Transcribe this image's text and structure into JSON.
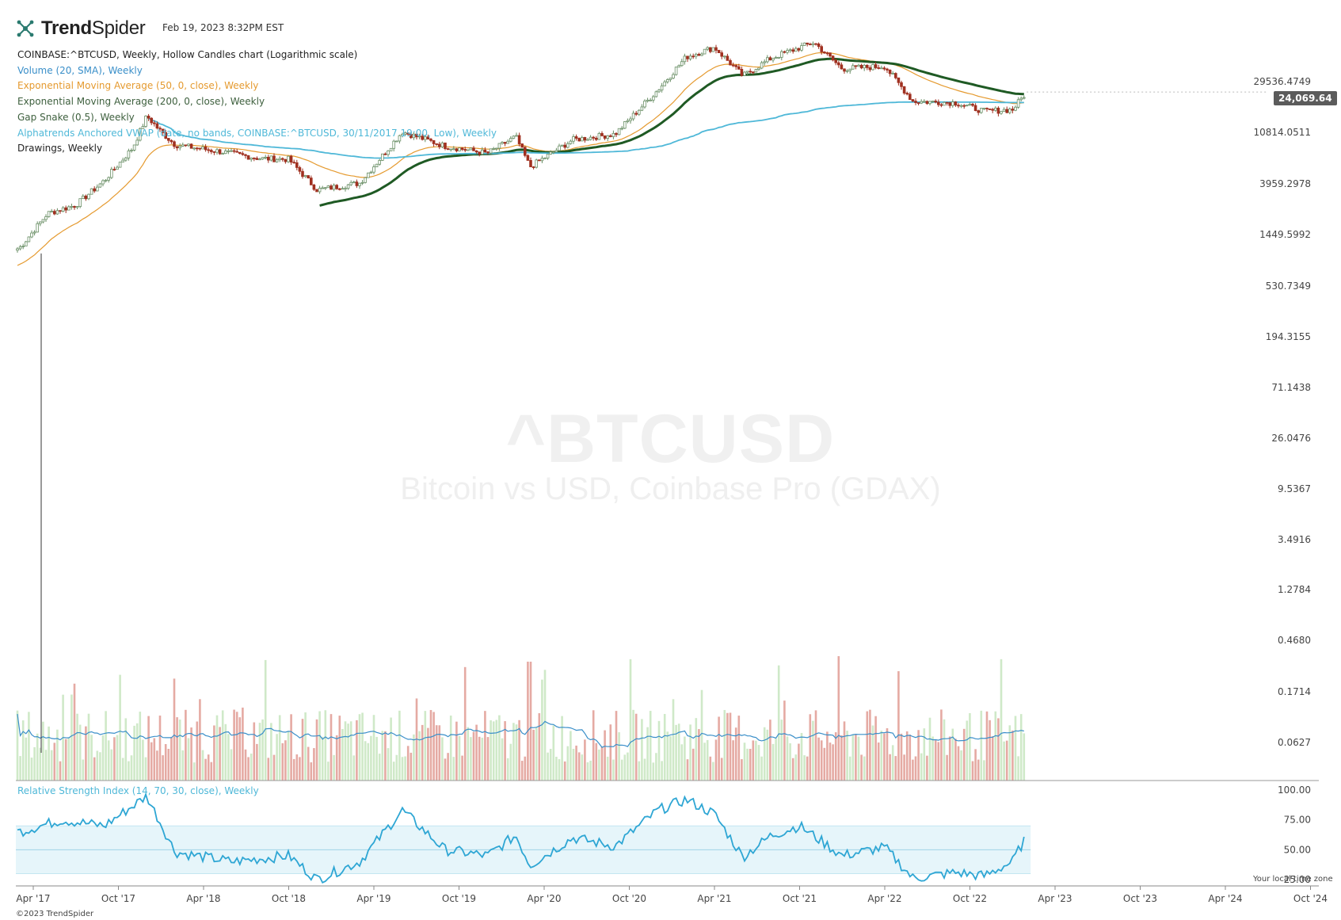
{
  "header": {
    "brand_bold": "Trend",
    "brand_thin": "Spider",
    "timestamp": "Feb 19, 2023 8:32PM EST"
  },
  "legend": [
    {
      "text": "COINBASE:^BTCUSD, Weekly, Hollow Candles chart (Logarithmic scale)",
      "color": "#222222"
    },
    {
      "text": "Volume (20, SMA), Weekly",
      "color": "#3a8fc9"
    },
    {
      "text": "Exponential Moving Average (50, 0, close), Weekly",
      "color": "#e59a2f"
    },
    {
      "text": "Exponential Moving Average (200, 0, close), Weekly",
      "color": "#3d5f3d"
    },
    {
      "text": "Gap Snake (0.5), Weekly",
      "color": "#3d5f3d"
    },
    {
      "text": "Alphatrends Anchored VWAP (date, no bands, COINBASE:^BTCUSD, 30/11/2017 19:00, Low), Weekly",
      "color": "#4fb8d8"
    },
    {
      "text": "Drawings, Weekly",
      "color": "#222222"
    }
  ],
  "watermark": {
    "symbol": "^BTCUSD",
    "description": "Bitcoin vs USD, Coinbase Pro (GDAX)"
  },
  "rsi_label": "Relative Strength Index (14, 70, 30, close), Weekly",
  "footer": {
    "copyright": "©2023 TrendSpider",
    "timezone_note": "Your local time zone"
  },
  "last_price": "24,069.64",
  "colors": {
    "up_candle": "#c9e8c3",
    "down_candle": "#a03020",
    "ema50": "#e59a2f",
    "ema200": "#1f5a24",
    "vwap": "#4fb8d8",
    "volume_up": "#cfe9c8",
    "volume_down": "#e5aaa3",
    "volume_sma": "#3a8fc9",
    "rsi_line": "#2ea6d4",
    "rsi_band": "#e6f5fa"
  },
  "chart_data": {
    "type": "candlestick",
    "scale": "logarithmic",
    "y_ticks": [
      "29536.4749",
      "10814.0511",
      "3959.2978",
      "1449.5992",
      "530.7349",
      "194.3155",
      "71.1438",
      "26.0476",
      "9.5367",
      "3.4916",
      "1.2784",
      "0.4680",
      "0.1714",
      "0.0627"
    ],
    "x_ticks": [
      "Apr '17",
      "Oct '17",
      "Apr '18",
      "Oct '18",
      "Apr '19",
      "Oct '19",
      "Apr '20",
      "Oct '20",
      "Apr '21",
      "Oct '21",
      "Apr '22",
      "Oct '22",
      "Apr '23",
      "Oct '23",
      "Apr '24",
      "Oct '24"
    ],
    "price_path": [
      [
        "2017-03",
        1100
      ],
      [
        "2017-05",
        2200
      ],
      [
        "2017-07",
        2600
      ],
      [
        "2017-09",
        4200
      ],
      [
        "2017-11",
        8000
      ],
      [
        "2017-12",
        15000
      ],
      [
        "2018-01",
        11000
      ],
      [
        "2018-02",
        8500
      ],
      [
        "2018-05",
        7500
      ],
      [
        "2018-08",
        6500
      ],
      [
        "2018-10",
        6400
      ],
      [
        "2018-12",
        3500
      ],
      [
        "2019-03",
        4000
      ],
      [
        "2019-06",
        11000
      ],
      [
        "2019-09",
        8300
      ],
      [
        "2019-12",
        7200
      ],
      [
        "2020-02",
        10000
      ],
      [
        "2020-03",
        5500
      ],
      [
        "2020-06",
        9400
      ],
      [
        "2020-09",
        10500
      ],
      [
        "2020-12",
        25000
      ],
      [
        "2021-02",
        48000
      ],
      [
        "2021-04",
        58000
      ],
      [
        "2021-06",
        33000
      ],
      [
        "2021-08",
        47000
      ],
      [
        "2021-11",
        64000
      ],
      [
        "2022-01",
        38000
      ],
      [
        "2022-04",
        40000
      ],
      [
        "2022-06",
        20000
      ],
      [
        "2022-09",
        19500
      ],
      [
        "2022-11",
        16500
      ],
      [
        "2023-01",
        17000
      ],
      [
        "2023-02",
        24069
      ]
    ],
    "last_price": 24069.64,
    "rsi_y_ticks": [
      "100.00",
      "75.00",
      "50.00",
      "25.00"
    ],
    "rsi_levels": {
      "upper": 70,
      "lower": 30
    },
    "rsi_path": [
      [
        "2017-03",
        65
      ],
      [
        "2017-06",
        75
      ],
      [
        "2017-09",
        70
      ],
      [
        "2017-12",
        95
      ],
      [
        "2018-02",
        48
      ],
      [
        "2018-06",
        40
      ],
      [
        "2018-10",
        45
      ],
      [
        "2018-12",
        25
      ],
      [
        "2019-03",
        40
      ],
      [
        "2019-06",
        83
      ],
      [
        "2019-09",
        50
      ],
      [
        "2019-12",
        45
      ],
      [
        "2020-02",
        62
      ],
      [
        "2020-03",
        37
      ],
      [
        "2020-06",
        60
      ],
      [
        "2020-09",
        53
      ],
      [
        "2020-12",
        83
      ],
      [
        "2021-02",
        92
      ],
      [
        "2021-04",
        80
      ],
      [
        "2021-06",
        44
      ],
      [
        "2021-08",
        62
      ],
      [
        "2021-10",
        70
      ],
      [
        "2022-01",
        45
      ],
      [
        "2022-04",
        52
      ],
      [
        "2022-06",
        26
      ],
      [
        "2022-09",
        31
      ],
      [
        "2022-11",
        28
      ],
      [
        "2023-01",
        40
      ],
      [
        "2023-02",
        62
      ]
    ]
  }
}
